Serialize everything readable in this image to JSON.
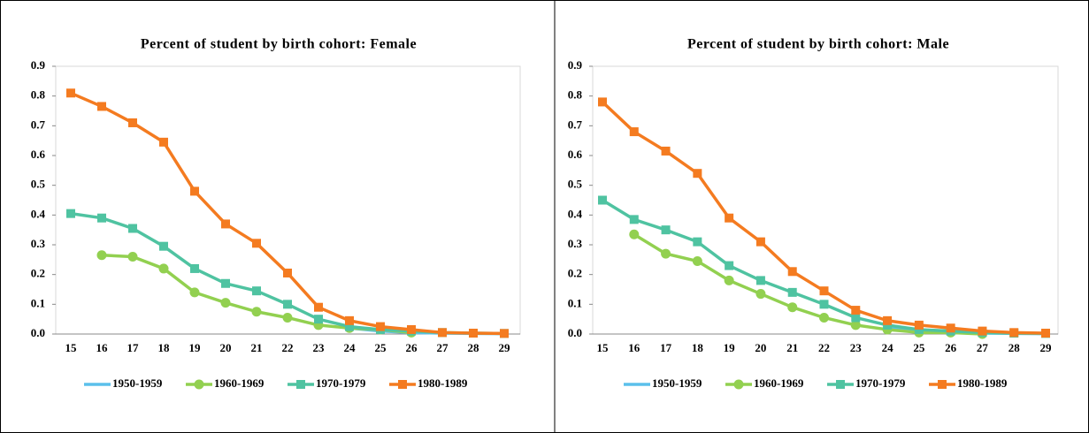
{
  "chart_data": [
    {
      "type": "line",
      "title": "Percent of student by birth cohort: Female",
      "categories": [
        "15",
        "16",
        "17",
        "18",
        "19",
        "20",
        "21",
        "22",
        "23",
        "24",
        "25",
        "26",
        "27",
        "28",
        "29"
      ],
      "ylim": [
        0,
        0.9
      ],
      "yticks": [
        {
          "value": 0,
          "label": "0.0"
        },
        0.1,
        0.2,
        0.3,
        0.4,
        0.5,
        0.6,
        0.7,
        0.8,
        0.9
      ],
      "series": [
        {
          "name": "1950-1959",
          "color": "#5bc0eb",
          "marker": "none",
          "values": [
            null,
            null,
            null,
            null,
            null,
            null,
            null,
            null,
            null,
            0.02,
            0.01,
            0.005,
            0.003,
            0.002,
            0.001
          ]
        },
        {
          "name": "1960-1969",
          "color": "#92d050",
          "marker": "circle",
          "values": [
            null,
            0.265,
            0.26,
            0.22,
            0.14,
            0.105,
            0.075,
            0.055,
            0.03,
            0.02,
            0.015,
            0.005,
            null,
            null,
            null
          ]
        },
        {
          "name": "1970-1979",
          "color": "#4fc3a1",
          "marker": "square",
          "values": [
            0.405,
            0.39,
            0.355,
            0.295,
            0.22,
            0.17,
            0.145,
            0.1,
            0.05,
            0.025,
            0.015,
            0.01,
            0.005,
            0.003,
            0.002
          ]
        },
        {
          "name": "1980-1989",
          "color": "#f47b20",
          "marker": "square",
          "values": [
            0.81,
            0.765,
            0.71,
            0.645,
            0.48,
            0.37,
            0.305,
            0.205,
            0.09,
            0.045,
            0.025,
            0.015,
            0.005,
            0.003,
            0.002
          ]
        }
      ]
    },
    {
      "type": "line",
      "title": "Percent of student by birth cohort: Male",
      "categories": [
        "15",
        "16",
        "17",
        "18",
        "19",
        "20",
        "21",
        "22",
        "23",
        "24",
        "25",
        "26",
        "27",
        "28",
        "29"
      ],
      "ylim": [
        0,
        0.9
      ],
      "yticks": [
        {
          "value": 0,
          "label": "0.0"
        },
        0.1,
        0.2,
        0.3,
        0.4,
        0.5,
        0.6,
        0.7,
        0.8,
        0.9
      ],
      "series": [
        {
          "name": "1950-1959",
          "color": "#5bc0eb",
          "marker": "none",
          "values": [
            null,
            null,
            null,
            null,
            null,
            null,
            null,
            null,
            null,
            0.02,
            0.01,
            0.005,
            0.003,
            0.002,
            0.001
          ]
        },
        {
          "name": "1960-1969",
          "color": "#92d050",
          "marker": "circle",
          "values": [
            null,
            0.335,
            0.27,
            0.245,
            0.18,
            0.135,
            0.09,
            0.055,
            0.03,
            0.015,
            0.005,
            0.005,
            0.0,
            null,
            null
          ]
        },
        {
          "name": "1970-1979",
          "color": "#4fc3a1",
          "marker": "square",
          "values": [
            0.45,
            0.385,
            0.35,
            0.31,
            0.23,
            0.18,
            0.14,
            0.1,
            0.055,
            0.03,
            0.015,
            0.01,
            0.005,
            0.003,
            0.002
          ]
        },
        {
          "name": "1980-1989",
          "color": "#f47b20",
          "marker": "square",
          "values": [
            0.78,
            0.68,
            0.615,
            0.54,
            0.39,
            0.31,
            0.21,
            0.145,
            0.08,
            0.045,
            0.03,
            0.02,
            0.01,
            0.005,
            0.003
          ]
        }
      ]
    }
  ]
}
